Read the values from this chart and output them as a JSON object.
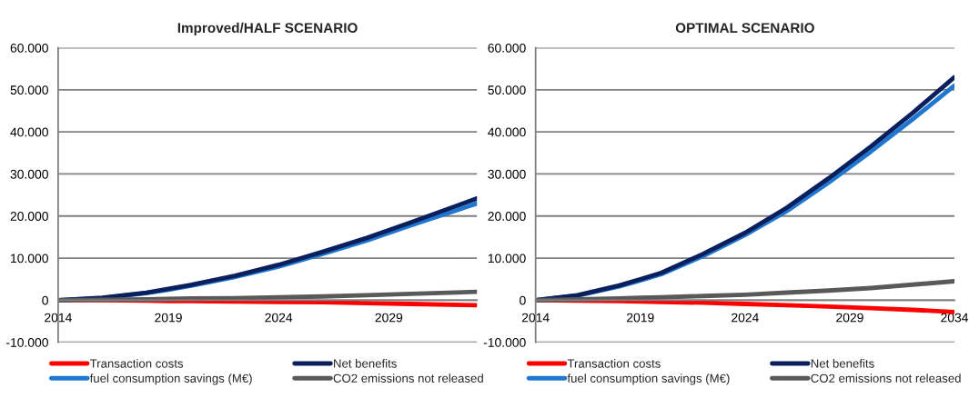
{
  "chart_data": [
    {
      "type": "line",
      "title": "Improved/HALF SCENARIO",
      "x": [
        2014,
        2016,
        2018,
        2019,
        2020,
        2022,
        2024,
        2026,
        2028,
        2030,
        2033
      ],
      "series": [
        {
          "name": "Transaction costs",
          "color": "#ff0000",
          "values": [
            0,
            0,
            -100,
            -200,
            -200,
            -300,
            -400,
            -500,
            -700,
            -900,
            -1200
          ]
        },
        {
          "name": "fuel consumption savings (M€)",
          "color": "#1f77d0",
          "values": [
            0,
            500,
            1700,
            2500,
            3400,
            5500,
            8000,
            11000,
            14200,
            17800,
            23000
          ]
        },
        {
          "name": "Net benefits",
          "color": "#0a1f5c",
          "values": [
            0,
            600,
            1800,
            2700,
            3600,
            5800,
            8400,
            11500,
            14800,
            18500,
            24200
          ]
        },
        {
          "name": "CO2 emissions not released",
          "color": "#595959",
          "values": [
            0,
            100,
            200,
            300,
            400,
            500,
            700,
            900,
            1200,
            1500,
            2000
          ]
        }
      ],
      "xlim": [
        2014,
        2033
      ],
      "xticks": [
        2014,
        2019,
        2024,
        2029
      ],
      "ylim": [
        -10000,
        60000
      ],
      "yticks": [
        {
          "value": -10000,
          "label": "-10.000"
        },
        0,
        {
          "value": 10000,
          "label": "10.000"
        },
        {
          "value": 20000,
          "label": "20.000"
        },
        {
          "value": 30000,
          "label": "30.000"
        },
        {
          "value": 40000,
          "label": "40.000"
        },
        {
          "value": 50000,
          "label": "50.000"
        },
        {
          "value": 60000,
          "label": "60.000"
        }
      ],
      "grid": "y",
      "legend": "bottom",
      "marker": "none",
      "line_style": "solid"
    },
    {
      "type": "line",
      "title": "OPTIMAL SCENARIO",
      "x": [
        2014,
        2016,
        2018,
        2019,
        2020,
        2022,
        2024,
        2026,
        2028,
        2030,
        2032,
        2034
      ],
      "series": [
        {
          "name": "Transaction costs",
          "color": "#ff0000",
          "values": [
            0,
            -100,
            -200,
            -300,
            -400,
            -600,
            -900,
            -1200,
            -1500,
            -1900,
            -2300,
            -2800
          ]
        },
        {
          "name": "fuel consumption savings (M€)",
          "color": "#1f77d0",
          "values": [
            0,
            1100,
            3300,
            4700,
            6200,
            10500,
            15500,
            21200,
            28000,
            35300,
            43000,
            51000
          ]
        },
        {
          "name": "Net benefits",
          "color": "#0a1f5c",
          "values": [
            0,
            1200,
            3500,
            5000,
            6500,
            11000,
            16000,
            22000,
            29000,
            36500,
            44500,
            53000
          ]
        },
        {
          "name": "CO2 emissions not released",
          "color": "#595959",
          "values": [
            0,
            200,
            400,
            600,
            700,
            1000,
            1300,
            1800,
            2300,
            2900,
            3700,
            4500
          ]
        }
      ],
      "xlim": [
        2014,
        2034
      ],
      "xticks": [
        2014,
        2019,
        2024,
        2029,
        2034
      ],
      "ylim": [
        -10000,
        60000
      ],
      "yticks": [
        {
          "value": -10000,
          "label": "-10.000"
        },
        0,
        {
          "value": 10000,
          "label": "10.000"
        },
        {
          "value": 20000,
          "label": "20.000"
        },
        {
          "value": 30000,
          "label": "30.000"
        },
        {
          "value": 40000,
          "label": "40.000"
        },
        {
          "value": 50000,
          "label": "50.000"
        },
        {
          "value": 60000,
          "label": "60.000"
        }
      ],
      "grid": "y",
      "legend": "bottom",
      "marker": "none",
      "line_style": "solid"
    }
  ]
}
